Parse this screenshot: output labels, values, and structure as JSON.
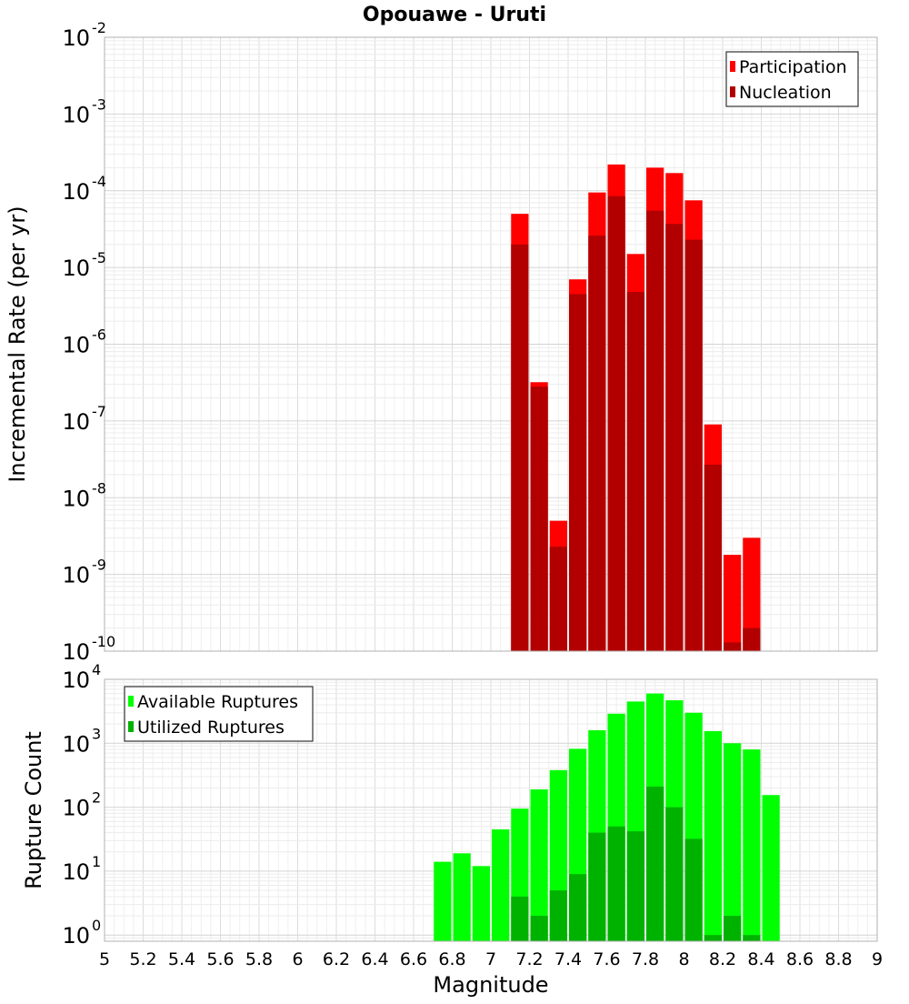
{
  "chart_data": [
    {
      "type": "bar",
      "title": "Opouawe - Uruti",
      "xlabel": "",
      "ylabel": "Incremental Rate (per yr)",
      "xlim": [
        5,
        9
      ],
      "ylim": [
        1e-10,
        0.01
      ],
      "yscale": "log",
      "y_tick_exponents": [
        -10,
        -9,
        -8,
        -7,
        -6,
        -5,
        -4,
        -3,
        -2
      ],
      "grid": true,
      "legend_position": "top-right",
      "bin_width": 0.1,
      "series": [
        {
          "name": "Participation",
          "color": "#ff0000",
          "x": [
            7.15,
            7.25,
            7.35,
            7.45,
            7.55,
            7.65,
            7.75,
            7.85,
            7.95,
            8.05,
            8.15,
            8.25,
            8.35
          ],
          "values": [
            5e-05,
            3.2e-07,
            5e-09,
            7e-06,
            9.5e-05,
            0.00022,
            1.5e-05,
            0.0002,
            0.00017,
            7.5e-05,
            9e-08,
            1.8e-09,
            3e-09
          ]
        },
        {
          "name": "Nucleation",
          "color": "#b20000",
          "x": [
            7.15,
            7.25,
            7.35,
            7.45,
            7.55,
            7.65,
            7.75,
            7.85,
            7.95,
            8.05,
            8.15,
            8.25,
            8.35
          ],
          "values": [
            2e-05,
            2.8e-07,
            2.3e-09,
            4.5e-06,
            2.6e-05,
            8.5e-05,
            4.8e-06,
            5.5e-05,
            3.7e-05,
            2.3e-05,
            2.7e-08,
            1.3e-10,
            2e-10
          ]
        }
      ]
    },
    {
      "type": "bar",
      "title": "",
      "xlabel": "Magnitude",
      "ylabel": "Rupture Count",
      "xlim": [
        5,
        9
      ],
      "ylim": [
        0.8,
        10000.0
      ],
      "yscale": "log",
      "y_tick_exponents": [
        0,
        1,
        2,
        3,
        4
      ],
      "x_tick_labels": [
        "5",
        "5.2",
        "5.4",
        "5.6",
        "5.8",
        "6",
        "6.2",
        "6.4",
        "6.6",
        "6.8",
        "7",
        "7.2",
        "7.4",
        "7.6",
        "7.8",
        "8",
        "8.2",
        "8.4",
        "8.6",
        "8.8",
        "9"
      ],
      "grid": true,
      "legend_position": "top-left",
      "bin_width": 0.1,
      "series": [
        {
          "name": "Available Ruptures",
          "color": "#00ff00",
          "x": [
            6.75,
            6.85,
            6.95,
            7.05,
            7.15,
            7.25,
            7.35,
            7.45,
            7.55,
            7.65,
            7.75,
            7.85,
            7.95,
            8.05,
            8.15,
            8.25,
            8.35,
            8.45
          ],
          "values": [
            14,
            19,
            12,
            45,
            95,
            190,
            380,
            820,
            1600,
            2900,
            4500,
            6000,
            4700,
            3000,
            1550,
            1000,
            800,
            155
          ]
        },
        {
          "name": "Utilized Ruptures",
          "color": "#00b200",
          "x": [
            7.15,
            7.25,
            7.35,
            7.45,
            7.55,
            7.65,
            7.75,
            7.85,
            7.95,
            8.05,
            8.15,
            8.25,
            8.35
          ],
          "values": [
            4,
            2,
            5,
            9,
            40,
            50,
            42,
            210,
            100,
            32,
            1,
            2,
            1
          ]
        }
      ]
    }
  ]
}
